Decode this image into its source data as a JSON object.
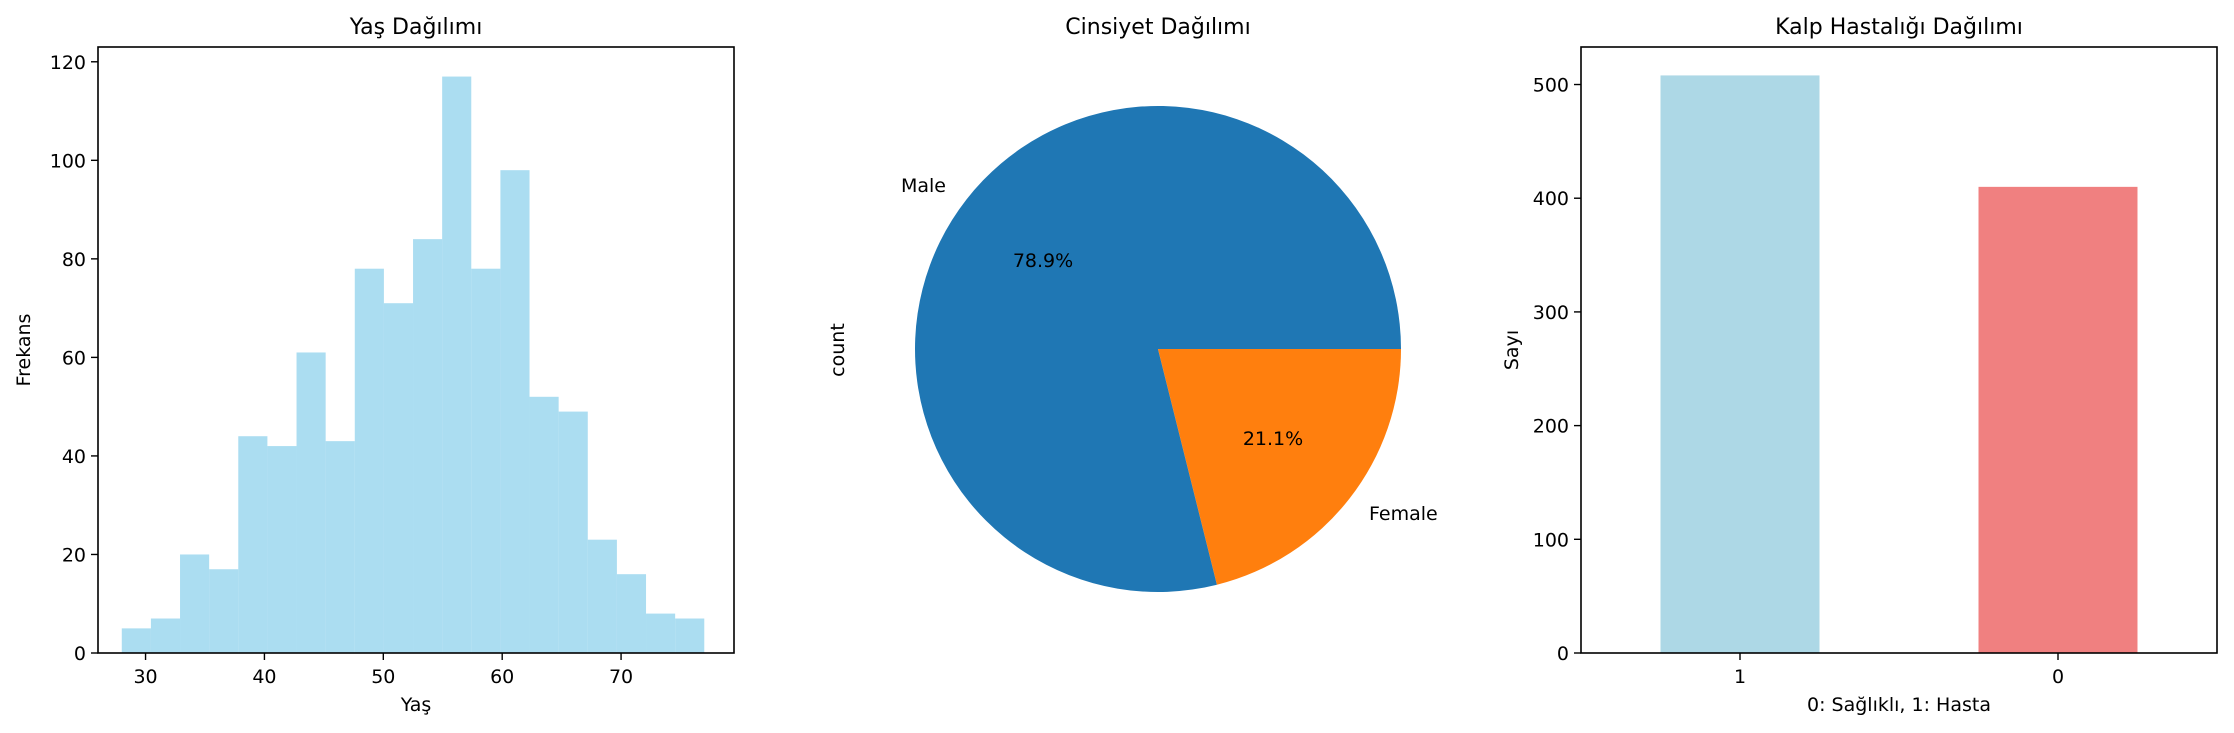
{
  "chart_data": [
    {
      "type": "bar",
      "subtype": "histogram",
      "title": "Yaş Dağılımı",
      "xlabel": "Yaş",
      "ylabel": "Frekans",
      "bin_edges": [
        28,
        30.45,
        32.9,
        35.35,
        37.8,
        40.25,
        42.7,
        45.15,
        47.6,
        50.05,
        52.5,
        54.95,
        57.4,
        59.85,
        62.3,
        64.75,
        67.2,
        69.65,
        72.1,
        74.55,
        77
      ],
      "values": [
        5,
        7,
        20,
        17,
        44,
        42,
        61,
        43,
        78,
        71,
        84,
        117,
        78,
        98,
        52,
        49,
        23,
        16,
        8,
        7
      ],
      "xticks": [
        30,
        40,
        50,
        60,
        70
      ],
      "yticks": [
        0,
        20,
        40,
        60,
        80,
        100,
        120
      ],
      "xlim": [
        26,
        79.5
      ],
      "ylim": [
        0,
        123
      ],
      "color": "#87ceeb",
      "opacity": 0.7
    },
    {
      "type": "pie",
      "title": "Cinsiyet Dağılımı",
      "ylabel": "count",
      "labels": [
        "Male",
        "Female"
      ],
      "values": [
        78.9,
        21.1
      ],
      "value_labels": [
        "78.9%",
        "21.1%"
      ],
      "colors": [
        "#1f77b4",
        "#ff7f0e"
      ]
    },
    {
      "type": "bar",
      "title": "Kalp Hastalığı Dağılımı",
      "xlabel": "0: Sağlıklı, 1: Hasta",
      "ylabel": "Sayı",
      "categories": [
        "1",
        "0"
      ],
      "values": [
        508,
        410
      ],
      "colors": [
        "#add8e6",
        "#f08080"
      ],
      "yticks": [
        0,
        100,
        200,
        300,
        400,
        500
      ],
      "ylim": [
        0,
        533
      ]
    }
  ]
}
